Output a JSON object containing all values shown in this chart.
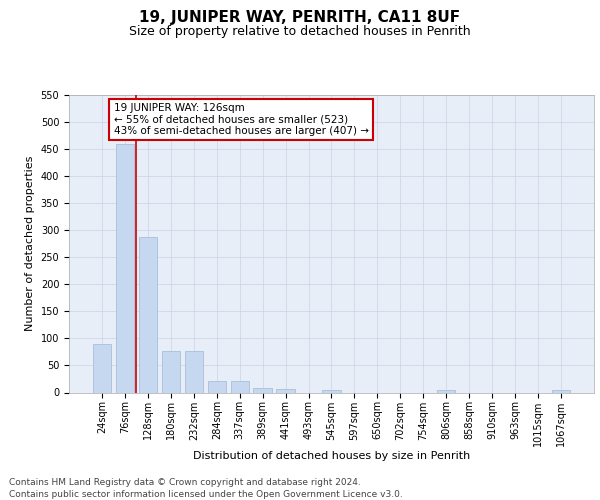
{
  "title": "19, JUNIPER WAY, PENRITH, CA11 8UF",
  "subtitle": "Size of property relative to detached houses in Penrith",
  "xlabel": "Distribution of detached houses by size in Penrith",
  "ylabel": "Number of detached properties",
  "bar_color": "#c5d8f0",
  "bar_edge_color": "#a0b8d8",
  "grid_color": "#c8d4e8",
  "background_color": "#e8eef8",
  "vline_color": "#cc0000",
  "vline_x_index": 1.5,
  "annotation_text": "19 JUNIPER WAY: 126sqm\n← 55% of detached houses are smaller (523)\n43% of semi-detached houses are larger (407) →",
  "annotation_box_color": "#ffffff",
  "annotation_box_edge": "#cc0000",
  "categories": [
    "24sqm",
    "76sqm",
    "128sqm",
    "180sqm",
    "232sqm",
    "284sqm",
    "337sqm",
    "389sqm",
    "441sqm",
    "493sqm",
    "545sqm",
    "597sqm",
    "650sqm",
    "702sqm",
    "754sqm",
    "806sqm",
    "858sqm",
    "910sqm",
    "963sqm",
    "1015sqm",
    "1067sqm"
  ],
  "values": [
    90,
    460,
    288,
    76,
    76,
    22,
    22,
    8,
    6,
    0,
    5,
    0,
    0,
    0,
    0,
    5,
    0,
    0,
    0,
    0,
    5
  ],
  "ylim": [
    0,
    550
  ],
  "yticks": [
    0,
    50,
    100,
    150,
    200,
    250,
    300,
    350,
    400,
    450,
    500,
    550
  ],
  "footer_text": "Contains HM Land Registry data © Crown copyright and database right 2024.\nContains public sector information licensed under the Open Government Licence v3.0.",
  "title_fontsize": 11,
  "subtitle_fontsize": 9,
  "axis_label_fontsize": 8,
  "tick_fontsize": 7,
  "annotation_fontsize": 7.5,
  "footer_fontsize": 6.5
}
